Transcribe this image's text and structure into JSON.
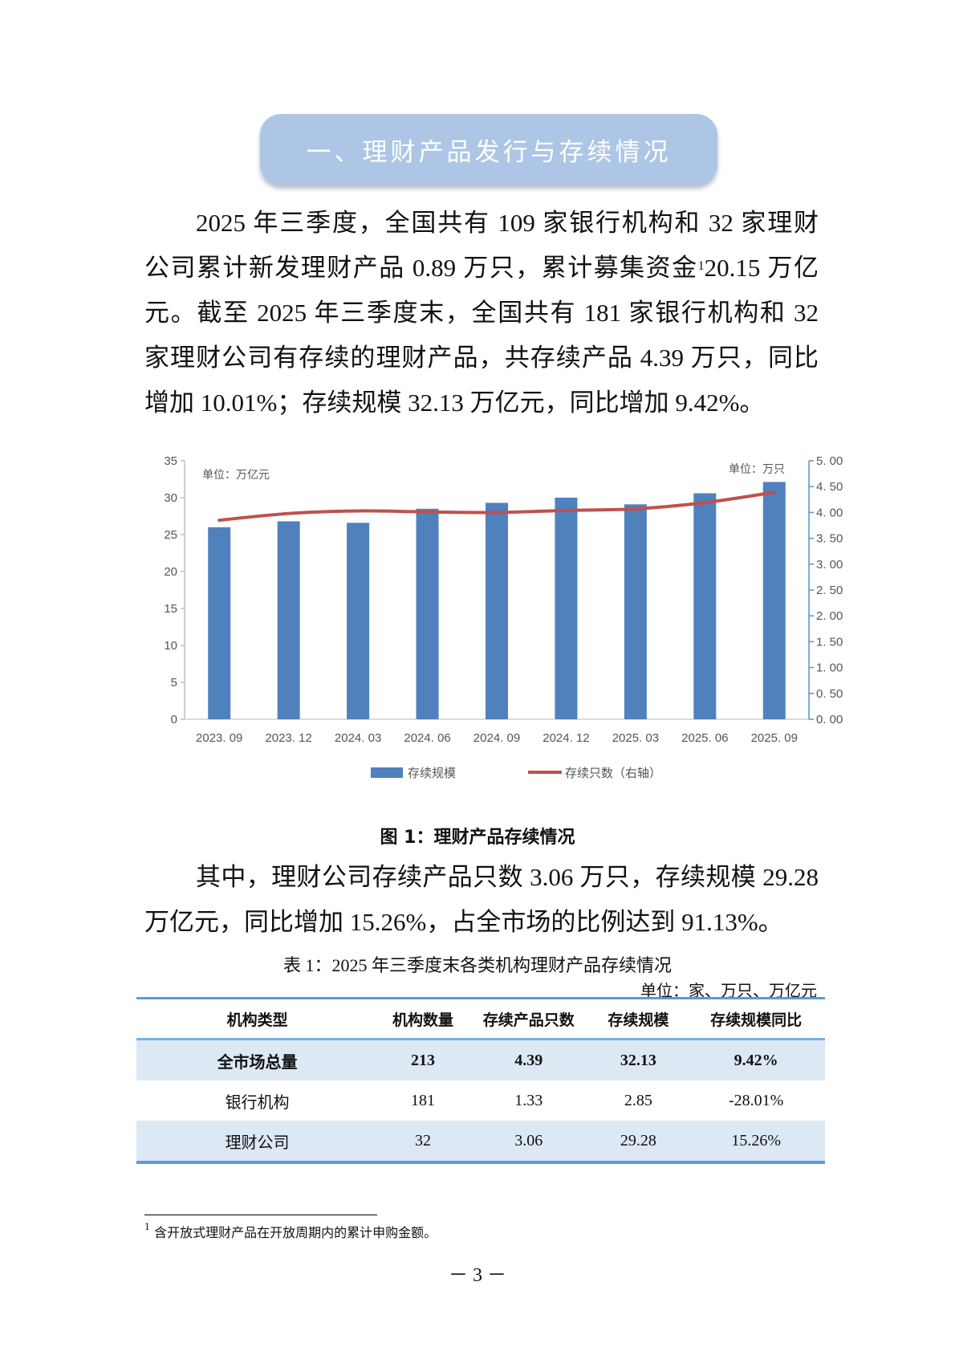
{
  "section": {
    "title": "一、理财产品发行与存续情况"
  },
  "paragraph1": {
    "lines": [
      "2025 年三季度，全国共有 109 家银行机构和 32 家理财",
      "公司累计新发理财产品 0.89 万只，累计募集资金",
      "元。截至 2025 年三季度末，全国共有 181 家银行机构和 32",
      "家理财公司有存续的理财产品，共存续产品 4.39 万只，同比",
      "增加 10.01%；存续规模 32.13 万亿元，同比增加 9.42%。"
    ],
    "footnote_ref": "1",
    "line2_tail": "20.15 万亿"
  },
  "chart_data": {
    "type": "bar",
    "title": "图 1：理财产品存续情况",
    "categories": [
      "2023.09",
      "2023.12",
      "2024.03",
      "2024.06",
      "2024.09",
      "2024.12",
      "2025.03",
      "2025.06",
      "2025.09"
    ],
    "series": [
      {
        "name": "存续规模",
        "type": "bar",
        "axis": "left",
        "color": "#4f81bd",
        "values": [
          26.0,
          26.8,
          26.6,
          28.5,
          29.3,
          30.0,
          29.1,
          30.6,
          32.13
        ]
      },
      {
        "name": "存续只数（右轴）",
        "type": "line",
        "axis": "right",
        "color": "#c0504d",
        "values": [
          3.85,
          3.98,
          4.03,
          4.01,
          4.0,
          4.04,
          4.07,
          4.19,
          4.39
        ]
      }
    ],
    "left_axis": {
      "unit": "单位：万亿元",
      "ylim": [
        0,
        35
      ],
      "ticks": [
        "0",
        "5",
        "10",
        "15",
        "20",
        "25",
        "30",
        "35"
      ]
    },
    "right_axis": {
      "unit": "单位：万只",
      "ylim": [
        0,
        5
      ],
      "ticks": [
        "0. 00",
        "0. 50",
        "1. 00",
        "1. 50",
        "2. 00",
        "2. 50",
        "3. 00",
        "3. 50",
        "4. 00",
        "4. 50",
        "5. 00"
      ]
    },
    "x_tick_labels": [
      "2023. 09",
      "2023. 12",
      "2024. 03",
      "2024. 06",
      "2024. 09",
      "2024. 12",
      "2025. 03",
      "2025. 06",
      "2025. 09"
    ],
    "legend": {
      "position": "bottom",
      "items": [
        "存续规模",
        "存续只数（右轴）"
      ]
    },
    "grid": false
  },
  "figure_caption": "图 1：理财产品存续情况",
  "paragraph2": {
    "lines": [
      "其中，理财公司存续产品只数 3.06 万只，存续规模 29.28",
      "万亿元，同比增加 15.26%，占全市场的比例达到 91.13%。"
    ]
  },
  "table": {
    "caption": "表 1：2025 年三季度末各类机构理财产品存续情况",
    "unit": "单位：家、万只、万亿元",
    "headers": [
      "机构类型",
      "机构数量",
      "存续产品只数",
      "存续规模",
      "存续规模同比"
    ],
    "rows": [
      [
        "全市场总量",
        "213",
        "4.39",
        "32.13",
        "9.42%"
      ],
      [
        "银行机构",
        "181",
        "1.33",
        "2.85",
        "-28.01%"
      ],
      [
        "理财公司",
        "32",
        "3.06",
        "29.28",
        "15.26%"
      ]
    ]
  },
  "footnote": {
    "mark": "1",
    "text": "含开放式理财产品在开放周期内的累计申购金额。"
  },
  "page_number": "－ 3 －"
}
